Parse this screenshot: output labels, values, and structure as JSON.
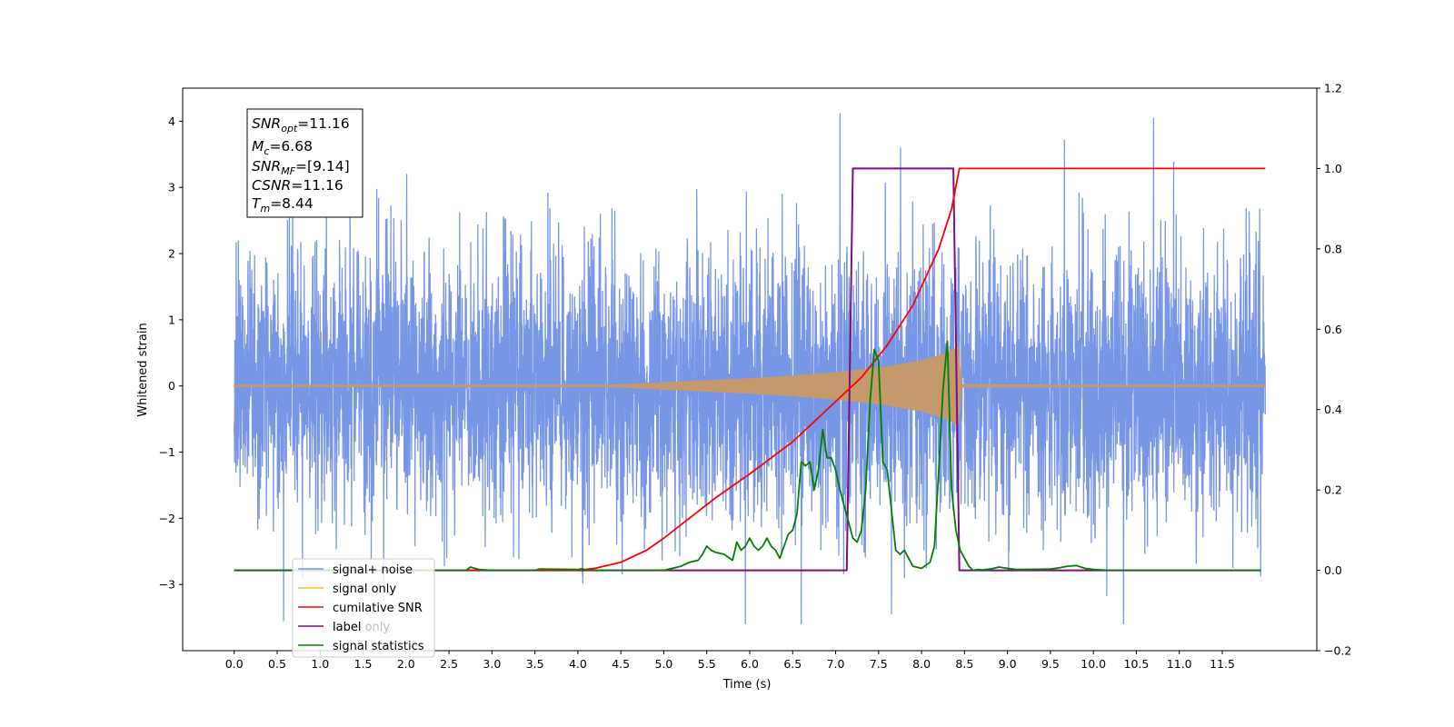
{
  "chart_data": {
    "type": "line",
    "title": "",
    "xlabel": "Time (s)",
    "ylabel": "Whitened strain",
    "y2label": "",
    "xlim": [
      -0.6,
      12.6
    ],
    "ylim": [
      -4.0,
      4.5
    ],
    "y2lim": [
      -0.2,
      1.2
    ],
    "x_ticks": [
      "0.0",
      "0.5",
      "1.0",
      "1.5",
      "2.0",
      "2.5",
      "3.0",
      "3.5",
      "4.0",
      "4.5",
      "5.0",
      "5.5",
      "6.0",
      "6.5",
      "7.0",
      "7.5",
      "8.0",
      "8.5",
      "9.0",
      "9.5",
      "10.0",
      "10.5",
      "11.0",
      "11.5"
    ],
    "y_ticks": [
      "−3",
      "−2",
      "−1",
      "0",
      "1",
      "2",
      "3",
      "4"
    ],
    "y2_ticks": [
      "−0.2",
      "0.0",
      "0.2",
      "0.4",
      "0.6",
      "0.8",
      "1.0",
      "1.2"
    ],
    "grid": false,
    "legend_position": "lower-left",
    "info_box": {
      "snr_opt": {
        "symbol": "SNR",
        "sub": "opt",
        "value": "=11.16"
      },
      "mc": {
        "symbol": "M",
        "sub": "c",
        "value": "=6.68"
      },
      "snr_mf": {
        "symbol": "SNR",
        "sub": "MF",
        "value": "=[9.14]"
      },
      "csnr": {
        "symbol": "CSNR",
        "sub": "",
        "value": "=11.16"
      },
      "tm": {
        "symbol": "T",
        "sub": "m",
        "value": "=8.44"
      }
    },
    "series": [
      {
        "name": "signal+ noise",
        "axis": "left",
        "color": "#7896e6",
        "style": "noise",
        "x_range": [
          0.0,
          12.0
        ],
        "noise_sigma": 1.0,
        "notable_peaks": [
          [
            7.05,
            4.12
          ],
          [
            10.7,
            4.05
          ],
          [
            5.95,
            -3.6
          ],
          [
            6.6,
            -3.6
          ],
          [
            10.35,
            -3.6
          ],
          [
            7.65,
            -3.45
          ]
        ]
      },
      {
        "name": "signal only",
        "axis": "left",
        "color": "#c49a6c",
        "style": "chirp_envelope",
        "x": [
          0.0,
          4.0,
          4.5,
          5.0,
          5.5,
          6.0,
          6.5,
          7.0,
          7.5,
          8.0,
          8.3,
          8.44,
          8.46,
          12.0
        ],
        "envelope": [
          0.0,
          0.0,
          0.02,
          0.05,
          0.08,
          0.11,
          0.15,
          0.2,
          0.27,
          0.38,
          0.5,
          0.6,
          0.02,
          0.0
        ]
      },
      {
        "name": "cumilative SNR",
        "axis": "right",
        "color": "#ff0000",
        "x": [
          0.0,
          4.0,
          4.2,
          4.5,
          4.8,
          5.0,
          5.3,
          5.6,
          6.0,
          6.5,
          7.0,
          7.3,
          7.6,
          7.9,
          8.2,
          8.35,
          8.44,
          8.46,
          12.0
        ],
        "values": [
          0.0,
          0.0,
          0.005,
          0.02,
          0.05,
          0.08,
          0.13,
          0.18,
          0.24,
          0.32,
          0.42,
          0.48,
          0.56,
          0.66,
          0.8,
          0.9,
          1.0,
          1.0,
          1.0
        ]
      },
      {
        "name": "label",
        "axis": "right",
        "color": "#7b0f7b",
        "x": [
          0.0,
          7.13,
          7.2,
          8.37,
          8.44,
          11.95
        ],
        "values": [
          0.0,
          0.0,
          1.0,
          1.0,
          0.0,
          0.0
        ]
      },
      {
        "name": "label only",
        "axis": "right",
        "color": "#ffffff",
        "hidden": true
      },
      {
        "name": "signal statistics",
        "axis": "right",
        "color": "#008000",
        "x": [
          0.0,
          2.7,
          2.75,
          2.85,
          3.0,
          3.5,
          3.55,
          4.0,
          4.05,
          4.1,
          5.0,
          5.2,
          5.3,
          5.4,
          5.45,
          5.5,
          5.55,
          5.6,
          5.7,
          5.8,
          5.85,
          5.9,
          5.95,
          6.0,
          6.05,
          6.1,
          6.15,
          6.2,
          6.25,
          6.3,
          6.35,
          6.4,
          6.45,
          6.5,
          6.55,
          6.6,
          6.65,
          6.7,
          6.75,
          6.8,
          6.85,
          6.9,
          6.95,
          7.0,
          7.05,
          7.1,
          7.2,
          7.25,
          7.3,
          7.35,
          7.4,
          7.45,
          7.5,
          7.55,
          7.6,
          7.65,
          7.7,
          7.75,
          7.8,
          7.85,
          7.9,
          8.0,
          8.1,
          8.15,
          8.2,
          8.25,
          8.3,
          8.35,
          8.4,
          8.45,
          8.5,
          8.55,
          8.6,
          8.65,
          8.7,
          8.8,
          8.9,
          9.0,
          9.1,
          9.5,
          9.6,
          9.7,
          9.8,
          9.9,
          10.0,
          10.2,
          11.95
        ],
        "values": [
          0.0,
          0.0,
          0.008,
          0.002,
          0.0,
          0.0,
          0.003,
          0.002,
          0.004,
          0.0,
          0.0,
          0.01,
          0.02,
          0.025,
          0.04,
          0.06,
          0.05,
          0.045,
          0.04,
          0.025,
          0.07,
          0.05,
          0.06,
          0.08,
          0.06,
          0.05,
          0.06,
          0.08,
          0.06,
          0.05,
          0.03,
          0.06,
          0.09,
          0.1,
          0.14,
          0.27,
          0.26,
          0.27,
          0.2,
          0.25,
          0.35,
          0.28,
          0.28,
          0.25,
          0.2,
          0.16,
          0.08,
          0.07,
          0.1,
          0.2,
          0.42,
          0.55,
          0.52,
          0.27,
          0.25,
          0.15,
          0.05,
          0.04,
          0.05,
          0.03,
          0.01,
          0.005,
          0.02,
          0.06,
          0.25,
          0.45,
          0.57,
          0.2,
          0.1,
          0.05,
          0.03,
          0.01,
          0.0,
          0.002,
          0.001,
          0.003,
          0.008,
          0.005,
          0.002,
          0.003,
          0.006,
          0.01,
          0.012,
          0.005,
          0.002,
          0.0,
          0.0
        ]
      }
    ]
  }
}
